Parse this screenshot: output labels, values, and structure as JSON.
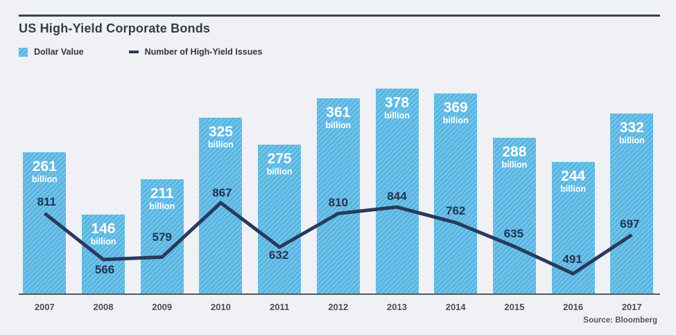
{
  "header": {
    "title": "US High-Yield Corporate Bonds"
  },
  "legend": {
    "items": [
      {
        "label": "Dollar Value",
        "swatch": "striped-bar-swatch"
      },
      {
        "label": "Number of High-Yield Issues",
        "swatch": "line-dash-swatch"
      }
    ]
  },
  "source": "Source: Bloomberg",
  "colors": {
    "background": "#eff1f4",
    "bar_base": "#55b3e1",
    "bar_stripe": "#76c4e9",
    "line": "#293a5c",
    "title_text": "#363b46",
    "rule": "#3b414d",
    "axis": "#55585c",
    "year_label": "#4b4e55",
    "bar_label": "#ffffff",
    "line_label": "#24334f",
    "source_text": "#53575e"
  },
  "chart_data": {
    "type": "bar",
    "subtype": "bar-line-combo",
    "title": "US High-Yield Corporate Bonds",
    "categories": [
      "2007",
      "2008",
      "2009",
      "2010",
      "2011",
      "2012",
      "2013",
      "2014",
      "2015",
      "2016",
      "2017"
    ],
    "series": [
      {
        "name": "Dollar Value",
        "type": "bar",
        "unit": "billion",
        "values": [
          261,
          146,
          211,
          325,
          275,
          361,
          378,
          369,
          288,
          244,
          332
        ]
      },
      {
        "name": "Number of High-Yield Issues",
        "type": "line",
        "values": [
          811,
          566,
          579,
          867,
          632,
          810,
          844,
          762,
          635,
          491,
          697
        ]
      }
    ],
    "xlabel": "",
    "ylabel": "",
    "grid": false,
    "legend_position": "top-left",
    "value_labels_shown": true,
    "source": "Source: Bloomberg"
  }
}
